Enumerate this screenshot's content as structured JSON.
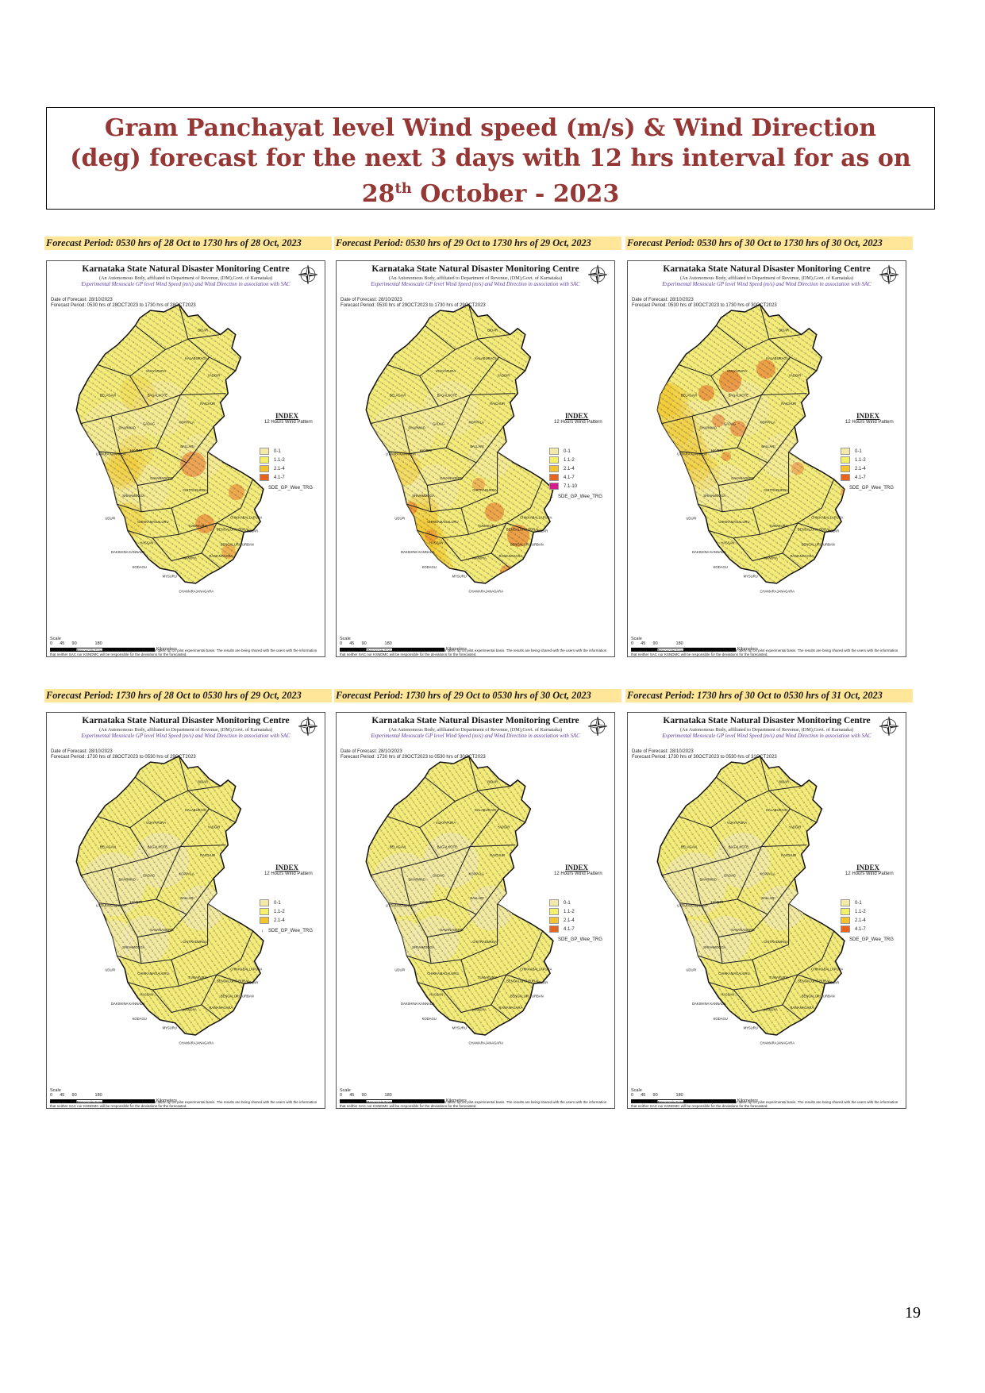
{
  "title": {
    "line1": "Gram Panchayat level Wind speed (m/s) & Wind Direction",
    "line2": "(deg) forecast for the next 3 days with 12 hrs interval for as on",
    "line3_pre": "28",
    "line3_sup": "th",
    "line3_post": " October - 2023"
  },
  "panel_common": {
    "center_name": "Karnataka State Natural Disaster Monitoring Centre",
    "center_sub": "(An Autonomous Body, affiliated to Department of Revenue, (DM),Govt. of Karnataka)",
    "map_subtitle": "Experimental Mesoscale GP level Wind Speed (m/s) and Wind Direction in association with SAC",
    "date_of_forecast": "Date of Forecast: 28/10/2023",
    "index_title": "INDEX",
    "index_sub": "12 Hours Wind Pattern",
    "dir_label": "SDE_GP_Wee_TRG",
    "scale_label": "Scale",
    "scale_ticks": "0      45      90               180",
    "scale_unit": "Kilometers",
    "disclaimer": "Disclaimer : The Mesoscale Forecast model development has been taken up on pilot experimental basis. The results are being shared with the users with the information that neither SAC nor KSNDMC will be responsible for the deviations for the forecasted."
  },
  "panels": [
    {
      "label": "Forecast Period: 0530 hrs of 28 Oct to 1730 hrs of 28 Oct, 2023",
      "period": "Forecast Period: 0530 hrs of 28OCT2023 to 1730 hrs of 28OCT2023",
      "legend": [
        "0-1",
        "1.1-2",
        "2.1-4",
        "4.1-7"
      ]
    },
    {
      "label": "Forecast Period: 0530 hrs of 29 Oct to 1730 hrs of 29 Oct, 2023",
      "period": "Forecast Period: 0530 hrs of 29OCT2023 to 1730 hrs of 29OCT2023",
      "legend": [
        "0-1",
        "1.1-2",
        "2.1-4",
        "4.1-7",
        "7.1-10"
      ]
    },
    {
      "label": "Forecast Period: 0530 hrs of 30 Oct to 1730 hrs of 30 Oct, 2023",
      "period": "Forecast Period: 0530 hrs of 30OCT2023 to 1730 hrs of 30OCT2023",
      "legend": [
        "0-1",
        "1.1-2",
        "2.1-4",
        "4.1-7"
      ]
    },
    {
      "label": "Forecast Period: 1730 hrs of 28 Oct to 0530 hrs of 29 Oct, 2023",
      "period": "Forecast Period: 1730 hrs of 28OCT2023 to 0530 hrs of 29OCT2023",
      "legend": [
        "0-1",
        "1.1-2",
        "2.1-4"
      ]
    },
    {
      "label": "Forecast Period: 1730 hrs of 29 Oct to 0530 hrs of 30 Oct, 2023",
      "period": "Forecast Period: 1730 hrs of 29OCT2023 to 0530 hrs of 30OCT2023",
      "legend": [
        "0-1",
        "1.1-2",
        "2.1-4",
        "4.1-7"
      ]
    },
    {
      "label": "Forecast Period: 1730 hrs of 30 Oct to 0530 hrs of 31 Oct, 2023",
      "period": "Forecast Period: 1730 hrs of 30OCT2023 to 0530 hrs of 31OCT2023",
      "legend": [
        "0-1",
        "1.1-2",
        "2.1-4",
        "4.1-7"
      ]
    }
  ],
  "legend_colors": {
    "0-1": "#f3eaa8",
    "1.1-2": "#f5f06a",
    "2.1-4": "#f4c430",
    "4.1-7": "#e8641e",
    "7.1-10": "#d81b8c"
  },
  "page_number": "19"
}
